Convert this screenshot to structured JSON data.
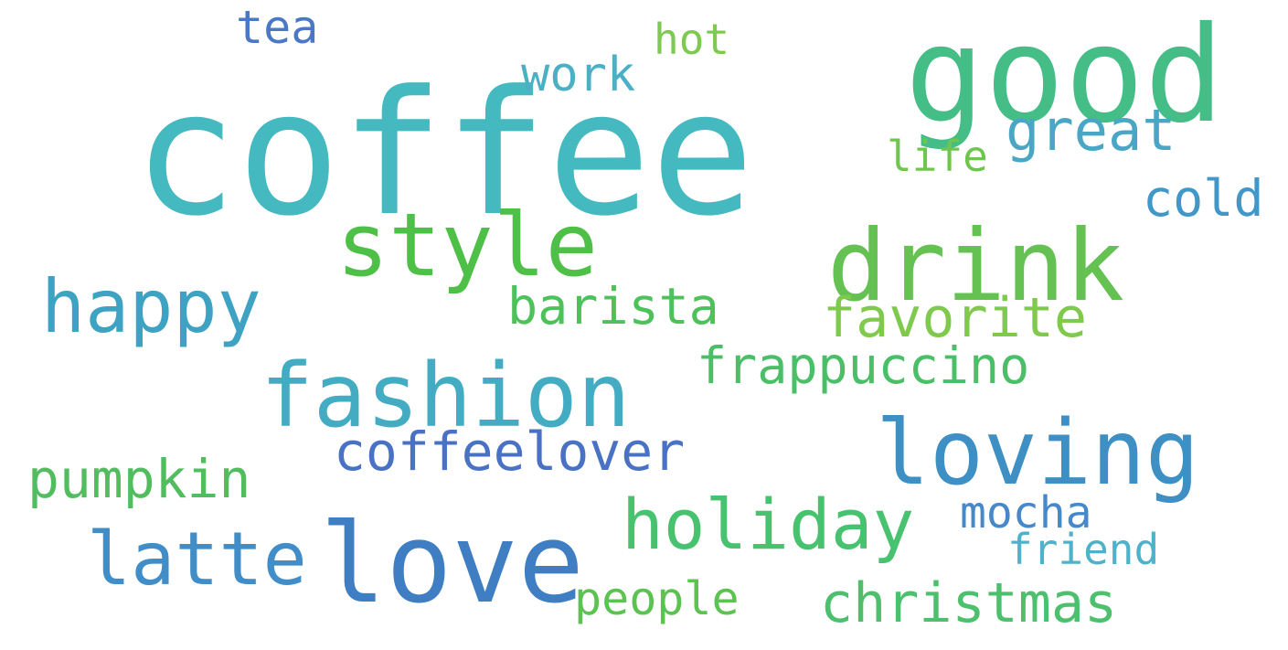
{
  "words": [
    {
      "text": "coffee",
      "color": "#45b9c0"
    },
    {
      "text": "good",
      "color": "#44be86"
    },
    {
      "text": "drink",
      "color": "#64c152"
    },
    {
      "text": "style",
      "color": "#4fc047"
    },
    {
      "text": "love",
      "color": "#3f7ec2"
    },
    {
      "text": "fashion",
      "color": "#43acc3"
    },
    {
      "text": "loving",
      "color": "#3d8fc4"
    },
    {
      "text": "happy",
      "color": "#3ea3c3"
    },
    {
      "text": "holiday",
      "color": "#47c26e"
    },
    {
      "text": "latte",
      "color": "#418dc7"
    },
    {
      "text": "barista",
      "color": "#4dc15a"
    },
    {
      "text": "favorite",
      "color": "#7fc94d"
    },
    {
      "text": "frappuccino",
      "color": "#4bbf67"
    },
    {
      "text": "coffeelover",
      "color": "#4a72c4"
    },
    {
      "text": "pumpkin",
      "color": "#51bd5f"
    },
    {
      "text": "christmas",
      "color": "#4dc06e"
    },
    {
      "text": "great",
      "color": "#4aa6c5"
    },
    {
      "text": "work",
      "color": "#4ab0c3"
    },
    {
      "text": "tea",
      "color": "#4b78c6"
    },
    {
      "text": "hot",
      "color": "#7ec950"
    },
    {
      "text": "life",
      "color": "#6fc64e"
    },
    {
      "text": "cold",
      "color": "#4197c8"
    },
    {
      "text": "mocha",
      "color": "#4688c9"
    },
    {
      "text": "friend",
      "color": "#4fb1ca"
    },
    {
      "text": "people",
      "color": "#5cc252"
    }
  ]
}
